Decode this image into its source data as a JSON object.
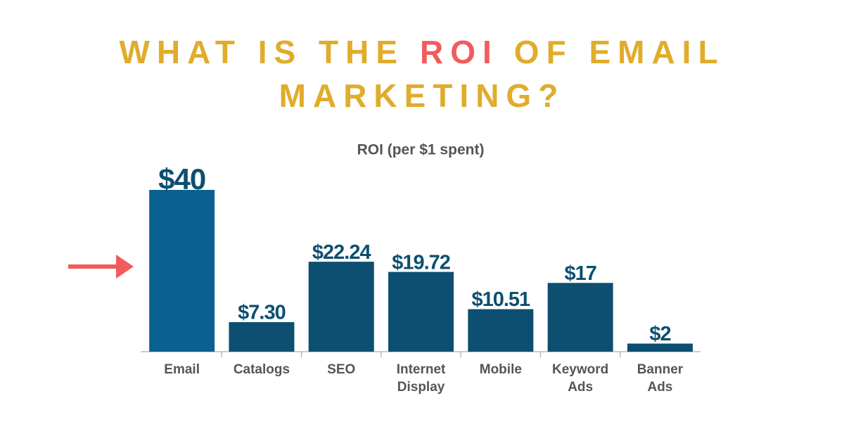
{
  "chart_data": {
    "type": "bar",
    "title_parts": [
      "WHAT IS THE",
      "ROI",
      "OF EMAIL",
      "MARKETING?"
    ],
    "subtitle": "ROI (per $1 spent)",
    "categories": [
      "Email",
      "Catalogs",
      "SEO",
      "Internet Display",
      "Mobile",
      "Keyword Ads",
      "Banner Ads"
    ],
    "values": [
      40,
      7.3,
      22.24,
      19.72,
      10.51,
      17,
      2
    ],
    "value_labels": [
      "$40",
      "$7.30",
      "$22.24",
      "$19.72",
      "$10.51",
      "$17",
      "$2"
    ],
    "colors": [
      "#0a6090",
      "#0d4f70",
      "#0d4f70",
      "#0d4f70",
      "#0d4f70",
      "#0d4f70",
      "#0d4f70"
    ]
  }
}
